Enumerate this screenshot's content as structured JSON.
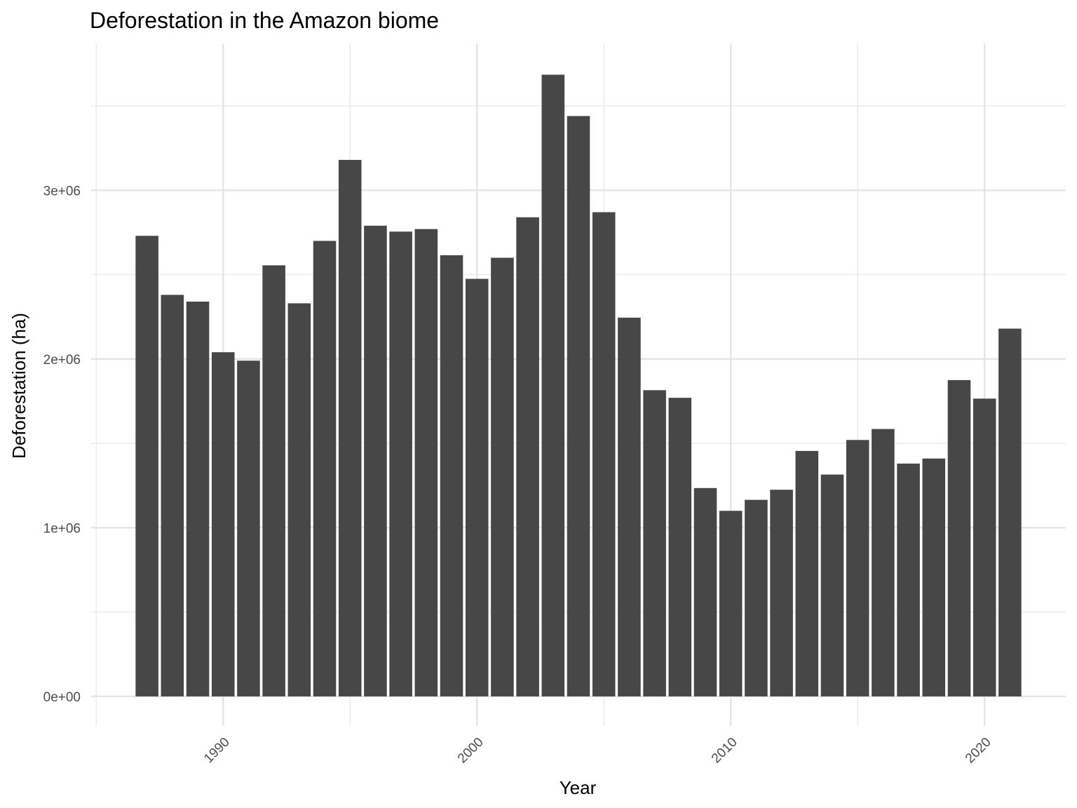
{
  "chart_data": {
    "type": "bar",
    "title": "Deforestation in the Amazon biome",
    "x_label": "Year",
    "y_label": "Deforestation (ha)",
    "x": [
      1987,
      1988,
      1989,
      1990,
      1991,
      1992,
      1993,
      1994,
      1995,
      1996,
      1997,
      1998,
      1999,
      2000,
      2001,
      2002,
      2003,
      2004,
      2005,
      2006,
      2007,
      2008,
      2009,
      2010,
      2011,
      2012,
      2013,
      2014,
      2015,
      2016,
      2017,
      2018,
      2019,
      2020,
      2021
    ],
    "values": [
      2730000,
      2380000,
      2340000,
      2040000,
      1990000,
      2555000,
      2330000,
      2700000,
      3180000,
      2790000,
      2755000,
      2770000,
      2615000,
      2475000,
      2600000,
      2840000,
      3685000,
      3440000,
      2870000,
      2245000,
      1815000,
      1770000,
      1235000,
      1100000,
      1165000,
      1225000,
      1455000,
      1315000,
      1520000,
      1585000,
      1380000,
      1410000,
      1875000,
      1765000,
      2180000
    ],
    "color": "#474747",
    "xlim": [
      1984.8,
      2023.2
    ],
    "ylim": [
      -175000,
      3870000
    ],
    "xticks": [
      1990,
      2000,
      2010,
      2020
    ],
    "xminorticks": [
      1985,
      1995,
      2005,
      2015
    ],
    "yticks": [
      {
        "value": 0,
        "label": "0e+00"
      },
      {
        "value": 1000000,
        "label": "1e+06"
      },
      {
        "value": 2000000,
        "label": "2e+06"
      },
      {
        "value": 3000000,
        "label": "3e+06"
      }
    ],
    "yminorticks": [
      500000,
      1500000,
      2500000,
      3500000
    ],
    "grid": true
  }
}
